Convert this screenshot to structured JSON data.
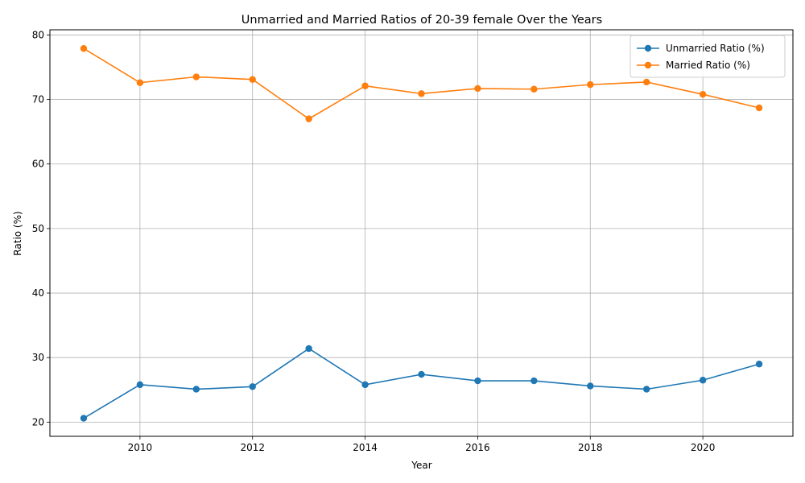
{
  "chart_data": {
    "type": "line",
    "title": "Unmarried and Married Ratios of 20-39 female Over the Years",
    "xlabel": "Year",
    "ylabel": "Ratio (%)",
    "x": [
      2009,
      2010,
      2011,
      2012,
      2013,
      2014,
      2015,
      2016,
      2017,
      2018,
      2019,
      2020,
      2021
    ],
    "series": [
      {
        "name": "Unmarried Ratio (%)",
        "color": "#1f77b4",
        "values": [
          20.6,
          25.8,
          25.1,
          25.5,
          31.4,
          25.8,
          27.4,
          26.4,
          26.4,
          25.6,
          25.1,
          26.5,
          29.0
        ]
      },
      {
        "name": "Married Ratio (%)",
        "color": "#ff7f0e",
        "values": [
          77.9,
          72.6,
          73.5,
          73.1,
          67.0,
          72.1,
          70.9,
          71.7,
          71.6,
          72.3,
          72.7,
          70.8,
          68.7
        ]
      }
    ],
    "xlim": [
      2008.4,
      2021.6
    ],
    "ylim": [
      17.8,
      80.8
    ],
    "xticks": [
      2010,
      2012,
      2014,
      2016,
      2018,
      2020
    ],
    "yticks": [
      20,
      30,
      40,
      50,
      60,
      70,
      80
    ],
    "grid": true,
    "legend_position": "top-right",
    "marker": "circle"
  }
}
